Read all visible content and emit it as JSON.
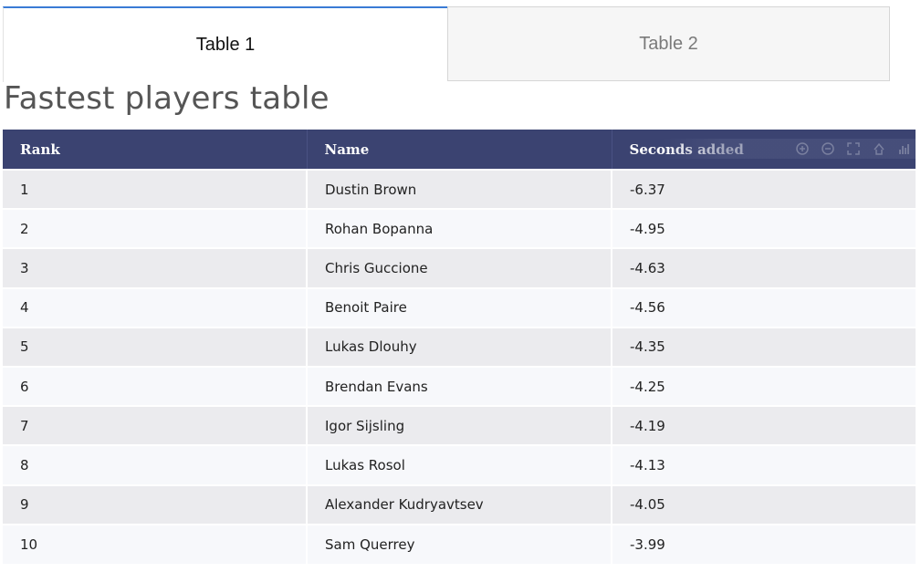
{
  "tabs": [
    {
      "label": "Table 1",
      "active": true
    },
    {
      "label": "Table 2",
      "active": false
    }
  ],
  "page_title": "Fastest players table",
  "table": {
    "columns": [
      "Rank",
      "Name",
      "Seconds added"
    ],
    "rows": [
      [
        "1",
        "Dustin Brown",
        "-6.37"
      ],
      [
        "2",
        "Rohan Bopanna",
        "-4.95"
      ],
      [
        "3",
        "Chris Guccione",
        "-4.63"
      ],
      [
        "4",
        "Benoit Paire",
        "-4.56"
      ],
      [
        "5",
        "Lukas Dlouhy",
        "-4.35"
      ],
      [
        "6",
        "Brendan Evans",
        "-4.25"
      ],
      [
        "7",
        "Igor Sijsling",
        "-4.19"
      ],
      [
        "8",
        "Lukas Rosol",
        "-4.13"
      ],
      [
        "9",
        "Alexander Kudryavtsev",
        "-4.05"
      ],
      [
        "10",
        "Sam Querrey",
        "-3.99"
      ]
    ]
  },
  "toolbar": {
    "icons": [
      "zoom-in-icon",
      "zoom-out-icon",
      "autoscale-icon",
      "reset-icon",
      "chart-logo-icon"
    ]
  },
  "colors": {
    "header_bg": "#3b4371",
    "row_odd": "#ebebee",
    "row_even": "#f7f8fb",
    "tab_active_border": "#3a7bd5"
  }
}
